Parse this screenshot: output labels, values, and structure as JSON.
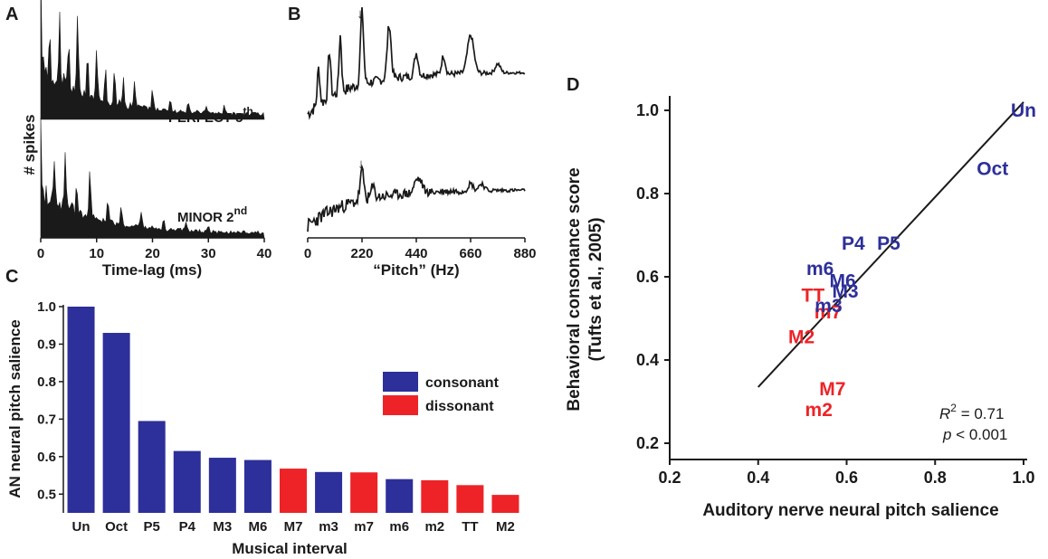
{
  "colors": {
    "consonant": "#2d2f9a",
    "dissonant": "#ee2327",
    "ink": "#1a1a1a"
  },
  "panel_a": {
    "label": "A",
    "ylabel": "# spikes",
    "xlabel": "Time-lag (ms)",
    "xticks": [
      "0",
      "10",
      "20",
      "30",
      "40"
    ],
    "top_trace_label": "PERFECT 5",
    "top_trace_sup": "th",
    "bottom_trace_label": "MINOR 2",
    "bottom_trace_sup": "nd"
  },
  "panel_b": {
    "label": "B",
    "xlabel": "“Pitch” (Hz)",
    "xticks": [
      "0",
      "220",
      "440",
      "660",
      "880"
    ],
    "arrow_glyph": "↓"
  },
  "chart_data": [
    {
      "panel": "C",
      "type": "bar",
      "title": "",
      "xlabel": "Musical interval",
      "ylabel": "AN neural pitch salience",
      "categories": [
        "Un",
        "Oct",
        "P5",
        "P4",
        "M3",
        "M6",
        "M7",
        "m3",
        "m7",
        "m6",
        "m2",
        "TT",
        "M2"
      ],
      "values": [
        1.0,
        0.93,
        0.695,
        0.615,
        0.597,
        0.591,
        0.568,
        0.559,
        0.558,
        0.54,
        0.537,
        0.524,
        0.498
      ],
      "groups": [
        "consonant",
        "consonant",
        "consonant",
        "consonant",
        "consonant",
        "consonant",
        "dissonant",
        "consonant",
        "dissonant",
        "consonant",
        "dissonant",
        "dissonant",
        "dissonant"
      ],
      "ylim": [
        0.45,
        1.0
      ],
      "yticks": [
        "0.5",
        "0.6",
        "0.7",
        "0.8",
        "0.9",
        "1.0"
      ],
      "legend": [
        {
          "label": "consonant",
          "group": "consonant"
        },
        {
          "label": "dissonant",
          "group": "dissonant"
        }
      ]
    },
    {
      "panel": "D",
      "type": "scatter",
      "title": "",
      "xlabel": "Auditory nerve neural pitch salience",
      "ylabel_line1": "Behavioral consonance score",
      "ylabel_line2": "(Tufts et al., 2005)",
      "xlim": [
        0.2,
        1.0
      ],
      "ylim": [
        0.2,
        1.0
      ],
      "xticks": [
        "0.2",
        "0.4",
        "0.6",
        "0.8",
        "1.0"
      ],
      "yticks": [
        "0.2",
        "0.4",
        "0.6",
        "0.8",
        "1.0"
      ],
      "points": [
        {
          "label": "Un",
          "x": 1.0,
          "y": 1.0,
          "group": "consonant"
        },
        {
          "label": "Oct",
          "x": 0.93,
          "y": 0.86,
          "group": "consonant"
        },
        {
          "label": "P4",
          "x": 0.615,
          "y": 0.68,
          "group": "consonant"
        },
        {
          "label": "P5",
          "x": 0.695,
          "y": 0.68,
          "group": "consonant"
        },
        {
          "label": "m6",
          "x": 0.54,
          "y": 0.62,
          "group": "consonant"
        },
        {
          "label": "M6",
          "x": 0.591,
          "y": 0.59,
          "group": "consonant"
        },
        {
          "label": "TT",
          "x": 0.524,
          "y": 0.555,
          "group": "dissonant"
        },
        {
          "label": "M3",
          "x": 0.597,
          "y": 0.565,
          "group": "consonant"
        },
        {
          "label": "m7",
          "x": 0.558,
          "y": 0.515,
          "group": "dissonant"
        },
        {
          "label": "m3",
          "x": 0.559,
          "y": 0.53,
          "group": "consonant"
        },
        {
          "label": "M2",
          "x": 0.498,
          "y": 0.455,
          "group": "dissonant"
        },
        {
          "label": "M7",
          "x": 0.568,
          "y": 0.33,
          "group": "dissonant"
        },
        {
          "label": "m2",
          "x": 0.537,
          "y": 0.28,
          "group": "dissonant"
        }
      ],
      "fit_line": {
        "x": [
          0.4,
          1.0
        ],
        "y": [
          0.335,
          1.02
        ]
      },
      "stats": {
        "r2_label": "R",
        "r2_sup": "2",
        "r2_value": " = 0.71",
        "p_label": "p",
        "p_value": " < 0.001"
      }
    }
  ]
}
